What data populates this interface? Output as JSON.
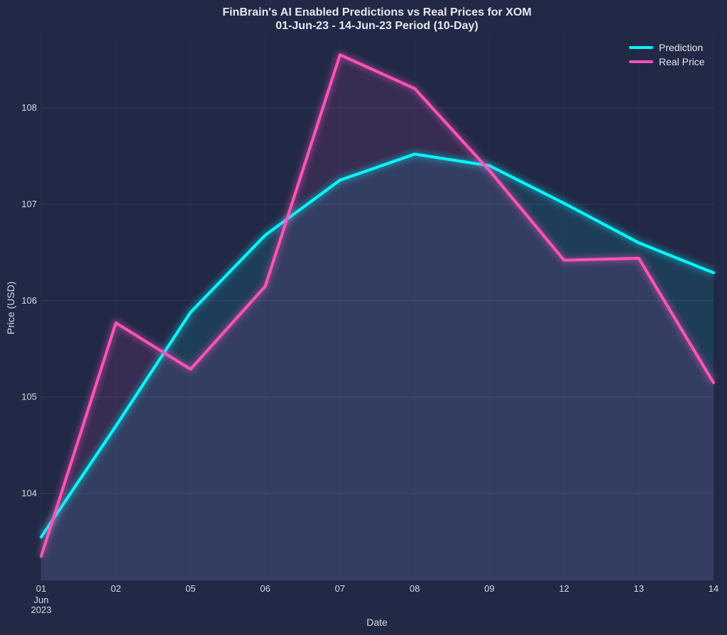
{
  "chart_data": {
    "type": "line",
    "title": "FinBrain's AI Enabled Predictions vs Real Prices for XOM",
    "subtitle": "01-Jun-23 - 14-Jun-23 Period (10-Day)",
    "xlabel": "Date",
    "ylabel": "Price (USD)",
    "categories": [
      "01",
      "02",
      "05",
      "06",
      "07",
      "08",
      "09",
      "12",
      "13",
      "14"
    ],
    "first_tick_extra": [
      "Jun",
      "2023"
    ],
    "yticks": [
      104,
      105,
      106,
      107,
      108
    ],
    "ylim": [
      103.1,
      108.75
    ],
    "grid": true,
    "legend_position": "top-right",
    "series": [
      {
        "name": "Prediction",
        "color": "#08F7FE",
        "values": [
          103.55,
          104.7,
          105.88,
          106.68,
          107.25,
          107.52,
          107.4,
          107.01,
          106.6,
          106.29
        ]
      },
      {
        "name": "Real Price",
        "color": "#FE53BB",
        "values": [
          103.35,
          105.77,
          105.29,
          106.15,
          108.55,
          108.2,
          107.35,
          106.42,
          106.44,
          105.15
        ]
      }
    ]
  }
}
